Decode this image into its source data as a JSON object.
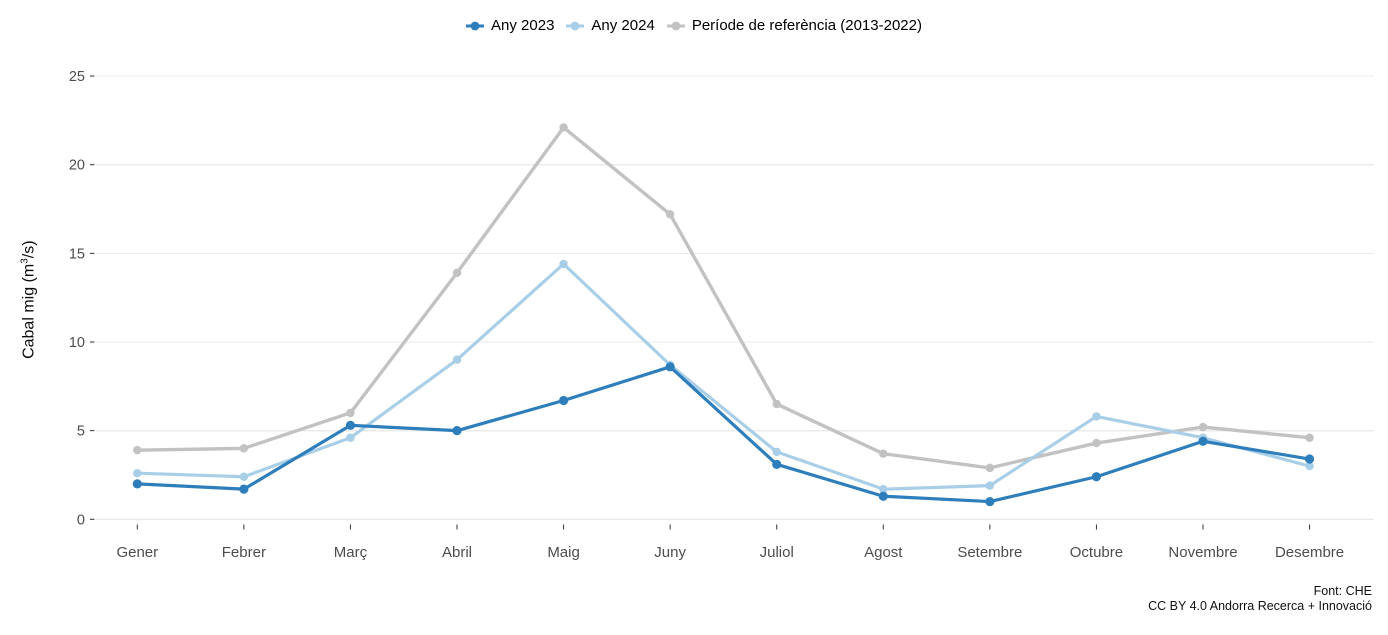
{
  "legend": {
    "items": [
      {
        "label": "Any 2023",
        "color": "#2E7EBC"
      },
      {
        "label": "Any 2024",
        "color": "#A9CFE8"
      },
      {
        "label": "Període de referència (2013-2022)",
        "color": "#C2C2C2"
      }
    ]
  },
  "y_axis": {
    "label_prefix": "Cabal mig (m",
    "label_sup": "3",
    "label_suffix": "/s)",
    "tick_labels": [
      "0",
      "5",
      "10",
      "15",
      "20",
      "25"
    ]
  },
  "footer": {
    "line1": "Font: CHE",
    "line2": "CC BY 4.0 Andorra Recerca + Innovació"
  },
  "chart_data": {
    "type": "line",
    "title": "",
    "xlabel": "",
    "ylabel": "Cabal mig (m³/s)",
    "ylim": [
      0,
      25
    ],
    "yticks": [
      0,
      5,
      10,
      15,
      20,
      25
    ],
    "grid": "horizontal-major-only",
    "legend_position": "top-center",
    "categories": [
      "Gener",
      "Febrer",
      "Març",
      "Abril",
      "Maig",
      "Juny",
      "Juliol",
      "Agost",
      "Setembre",
      "Octubre",
      "Novembre",
      "Desembre"
    ],
    "series": [
      {
        "name": "Any 2023",
        "color": "#2E7EBC",
        "values": [
          2.0,
          1.7,
          5.3,
          5.0,
          6.7,
          8.6,
          3.1,
          1.3,
          1.0,
          2.4,
          4.4,
          3.4
        ]
      },
      {
        "name": "Any 2024",
        "color": "#A9CFE8",
        "values": [
          2.6,
          2.4,
          4.6,
          9.0,
          14.4,
          8.7,
          3.8,
          1.7,
          1.9,
          5.8,
          4.6,
          3.0
        ]
      },
      {
        "name": "Període de referència (2013-2022)",
        "color": "#C2C2C2",
        "values": [
          3.9,
          4.0,
          6.0,
          13.9,
          22.1,
          17.2,
          6.5,
          3.7,
          2.9,
          4.3,
          5.2,
          4.6
        ]
      }
    ],
    "colors": {
      "grid": "#EBEBEB",
      "axis_text": "#4D4D4D",
      "tick_mark": "#333333"
    }
  }
}
